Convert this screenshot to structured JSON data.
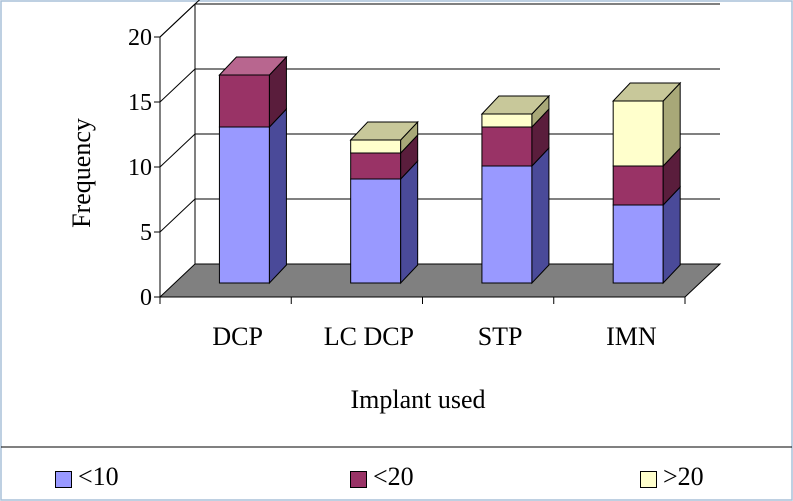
{
  "chart_data": {
    "type": "bar",
    "stacked": true,
    "three_d": true,
    "categories": [
      "DCP",
      "LC DCP",
      "STP",
      "IMN"
    ],
    "series": [
      {
        "name": "<10",
        "values": [
          12,
          8,
          9,
          6
        ],
        "color": "#9999ff",
        "side": "#4a4a99",
        "top": "#c4c4ff"
      },
      {
        "name": "<20",
        "values": [
          4,
          2,
          3,
          3
        ],
        "color": "#993366",
        "side": "#5a1d3c",
        "top": "#b8668f"
      },
      {
        "name": ">20",
        "values": [
          0,
          1,
          1,
          5
        ],
        "color": "#ffffcc",
        "side": "#a8a878",
        "top": "#c8c89a"
      }
    ],
    "xlabel": "Implant used",
    "ylabel": "Frequency",
    "ylim": [
      0,
      20
    ],
    "yticks": [
      0,
      5,
      10,
      15,
      20
    ],
    "grid": true,
    "legend_position": "bottom",
    "floor_color": "#808080",
    "frame_color": "#a8c0d8"
  }
}
